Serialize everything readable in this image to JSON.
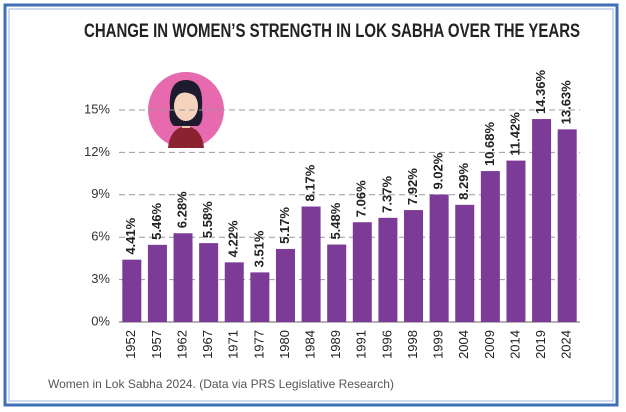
{
  "chart_data": {
    "type": "bar",
    "title": "CHANGE IN WOMEN’S STRENGTH IN LOK SABHA OVER THE YEARS",
    "caption": "Women in Lok Sabha 2024. (Data via PRS Legislative Research)",
    "categories": [
      "1952",
      "1957",
      "1962",
      "1967",
      "1971",
      "1977",
      "1980",
      "1984",
      "1989",
      "1991",
      "1996",
      "1998",
      "1999",
      "2004",
      "2009",
      "2014",
      "2019",
      "2024"
    ],
    "values": [
      4.41,
      5.46,
      6.28,
      5.58,
      4.22,
      3.51,
      5.17,
      8.17,
      5.48,
      7.06,
      7.37,
      7.92,
      9.02,
      8.29,
      10.68,
      11.42,
      14.36,
      13.63
    ],
    "value_labels": [
      "4.41%",
      "5.46%",
      "6.28%",
      "5.58%",
      "4.22%",
      "3.51%",
      "5.17%",
      "8.17%",
      "5.48%",
      "7.06%",
      "7.37%",
      "7.92%",
      "9.02%",
      "8.29%",
      "10.68%",
      "11.42%",
      "14.36%",
      "13.63%"
    ],
    "color": "#7b3b97",
    "ylim": [
      0,
      15
    ],
    "yticks": [
      {
        "value": 0,
        "label": "0%"
      },
      {
        "value": 3,
        "label": "3%"
      },
      {
        "value": 6,
        "label": "6%"
      },
      {
        "value": 9,
        "label": "9%"
      },
      {
        "value": 12,
        "label": "12%"
      },
      {
        "value": 15,
        "label": "15%"
      }
    ],
    "grid": true
  }
}
